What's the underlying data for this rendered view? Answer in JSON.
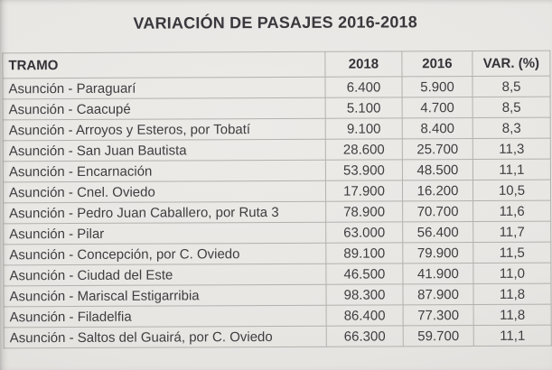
{
  "title": "VARIACIÓN DE PASAJES 2016-2018",
  "table": {
    "columns": [
      "TRAMO",
      "2018",
      "2016",
      "VAR. (%)"
    ],
    "rows": [
      {
        "tramo": "Asunción - Paraguarí",
        "y2018": "6.400",
        "y2016": "5.900",
        "var": "8,5"
      },
      {
        "tramo": "Asunción - Caacupé",
        "y2018": "5.100",
        "y2016": "4.700",
        "var": "8,5"
      },
      {
        "tramo": "Asunción - Arroyos y Esteros, por Tobatí",
        "y2018": "9.100",
        "y2016": "8.400",
        "var": "8,3"
      },
      {
        "tramo": "Asunción - San Juan Bautista",
        "y2018": "28.600",
        "y2016": "25.700",
        "var": "11,3"
      },
      {
        "tramo": "Asunción - Encarnación",
        "y2018": "53.900",
        "y2016": "48.500",
        "var": "11,1"
      },
      {
        "tramo": "Asunción - Cnel. Oviedo",
        "y2018": "17.900",
        "y2016": "16.200",
        "var": "10,5"
      },
      {
        "tramo": "Asunción - Pedro Juan Caballero, por Ruta 3",
        "y2018": "78.900",
        "y2016": "70.700",
        "var": "11,6"
      },
      {
        "tramo": "Asunción - Pilar",
        "y2018": "63.000",
        "y2016": "56.400",
        "var": "11,7"
      },
      {
        "tramo": "Asunción - Concepción, por C. Oviedo",
        "y2018": "89.100",
        "y2016": "79.900",
        "var": "11,5"
      },
      {
        "tramo": "Asunción - Ciudad del Este",
        "y2018": "46.500",
        "y2016": "41.900",
        "var": "11,0"
      },
      {
        "tramo": "Asunción - Mariscal Estigarribia",
        "y2018": "98.300",
        "y2016": "87.900",
        "var": "11,8"
      },
      {
        "tramo": "Asunción - Filadelfia",
        "y2018": "86.400",
        "y2016": "77.300",
        "var": "11,8"
      },
      {
        "tramo": "Asunción - Saltos del Guairá, por C. Oviedo",
        "y2018": "66.300",
        "y2016": "59.700",
        "var": "11,1"
      }
    ]
  },
  "colors": {
    "paper": "#e8e6e3",
    "grid": "#b3b1ae",
    "text": "#3e3e40",
    "title": "#39393d"
  }
}
